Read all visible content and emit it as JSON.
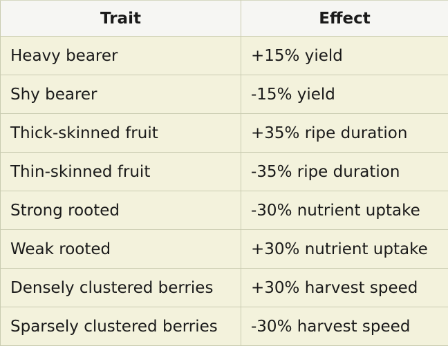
{
  "table": {
    "headers": [
      "Trait",
      "Effect"
    ],
    "rows": [
      {
        "trait": "Heavy bearer",
        "effect": "+15% yield"
      },
      {
        "trait": "Shy bearer",
        "effect": "-15% yield"
      },
      {
        "trait": "Thick-skinned fruit",
        "effect": "+35% ripe duration"
      },
      {
        "trait": "Thin-skinned fruit",
        "effect": "-35% ripe duration"
      },
      {
        "trait": "Strong rooted",
        "effect": "-30% nutrient uptake"
      },
      {
        "trait": "Weak rooted",
        "effect": "+30% nutrient uptake"
      },
      {
        "trait": "Densely clustered berries",
        "effect": "+30% harvest speed"
      },
      {
        "trait": "Sparsely clustered berries",
        "effect": "-30% harvest speed"
      }
    ]
  },
  "colors": {
    "header_background": "#f6f6f3",
    "cell_background": "#f3f2dc",
    "border": "#c9cbb0"
  }
}
